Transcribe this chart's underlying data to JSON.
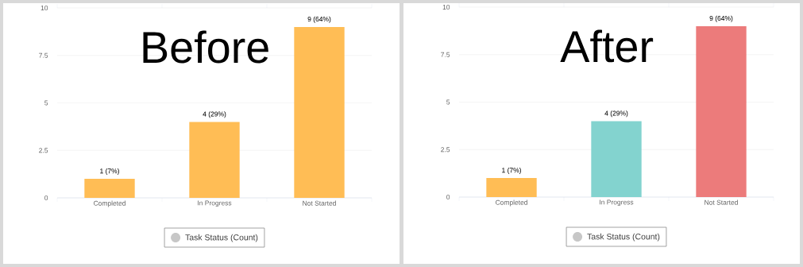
{
  "chart_data": [
    {
      "type": "bar",
      "title": "Before",
      "categories": [
        "Completed",
        "In Progress",
        "Not Started"
      ],
      "series": [
        {
          "name": "Task Status (Count)",
          "colors": [
            "#ffbd55",
            "#ffbd55",
            "#ffbd55"
          ],
          "values": [
            1,
            4,
            9
          ],
          "value_labels": [
            "1 (7%)",
            "4 (29%)",
            "9 (64%)"
          ]
        }
      ],
      "ylim": [
        0,
        10
      ],
      "yticks": [
        0,
        2.5,
        5,
        7.5,
        10
      ],
      "grid": "y",
      "legend": "bottom"
    },
    {
      "type": "bar",
      "title": "After",
      "categories": [
        "Completed",
        "In Progress",
        "Not Started"
      ],
      "series": [
        {
          "name": "Task Status (Count)",
          "colors": [
            "#ffbd55",
            "#83d3cf",
            "#ec7b7b"
          ],
          "values": [
            1,
            4,
            9
          ],
          "value_labels": [
            "1 (7%)",
            "4 (29%)",
            "9 (64%)"
          ]
        }
      ],
      "ylim": [
        0,
        10
      ],
      "yticks": [
        0,
        2.5,
        5,
        7.5,
        10
      ],
      "grid": "y",
      "legend": "bottom"
    }
  ]
}
